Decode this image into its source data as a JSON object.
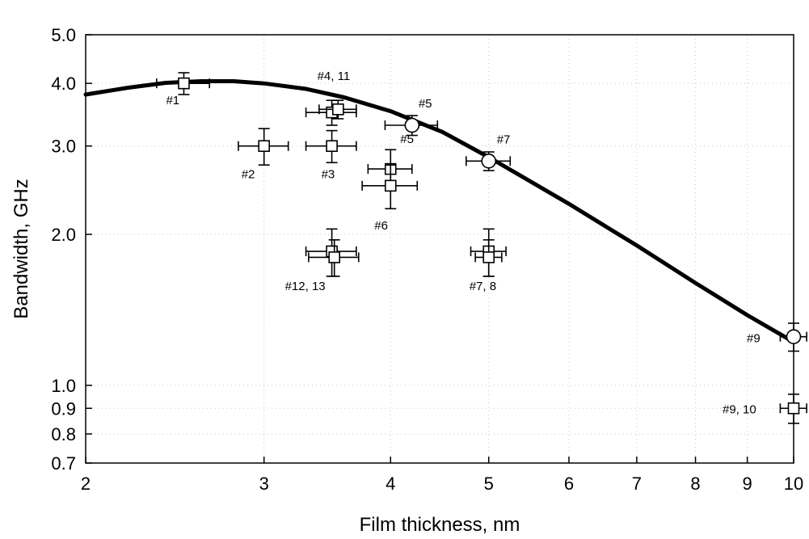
{
  "chart_data": {
    "type": "scatter",
    "xlabel": "Film thickness, nm",
    "ylabel": "Bandwidth, GHz",
    "x_scale": "log",
    "y_scale": "log",
    "xlim": [
      2,
      10
    ],
    "ylim": [
      0.7,
      5.0
    ],
    "x_ticks": [
      {
        "value": 2,
        "label": "2"
      },
      {
        "value": 3,
        "label": "3"
      },
      {
        "value": 4,
        "label": "4"
      },
      {
        "value": 5,
        "label": "5"
      },
      {
        "value": 6,
        "label": "6"
      },
      {
        "value": 7,
        "label": "7"
      },
      {
        "value": 8,
        "label": "8"
      },
      {
        "value": 9,
        "label": "9"
      },
      {
        "value": 10,
        "label": "10"
      }
    ],
    "y_ticks": [
      {
        "value": 0.7,
        "label": "0.7"
      },
      {
        "value": 0.8,
        "label": "0.8"
      },
      {
        "value": 0.9,
        "label": "0.9"
      },
      {
        "value": 1.0,
        "label": "1.0"
      },
      {
        "value": 2.0,
        "label": "2.0"
      },
      {
        "value": 3.0,
        "label": "3.0"
      },
      {
        "value": 4.0,
        "label": "4.0"
      },
      {
        "value": 5.0,
        "label": "5.0"
      }
    ],
    "grid": true,
    "series": [
      {
        "marker": "square",
        "points": [
          {
            "x": 2.5,
            "y": 4.0,
            "xerr": 0.15,
            "yerr": 0.2,
            "label": "#1"
          },
          {
            "x": 3.0,
            "y": 3.0,
            "xerr": 0.17,
            "yerr": 0.25,
            "label": "#2"
          },
          {
            "x": 3.5,
            "y": 3.0,
            "xerr": 0.2,
            "yerr": 0.22,
            "label": "#3"
          },
          {
            "x": 3.5,
            "y": 3.5,
            "xerr": 0.2,
            "yerr": 0.2,
            "label": "#4, 11"
          },
          {
            "x": 3.55,
            "y": 3.55,
            "xerr": 0.15,
            "yerr": 0.15,
            "label": ""
          },
          {
            "x": 4.0,
            "y": 2.7,
            "xerr": 0.2,
            "yerr": 0.25,
            "label": "#5"
          },
          {
            "x": 4.0,
            "y": 2.5,
            "xerr": 0.25,
            "yerr": 0.25,
            "label": "#6"
          },
          {
            "x": 3.5,
            "y": 1.85,
            "xerr": 0.2,
            "yerr": 0.2,
            "label": "#12, 13"
          },
          {
            "x": 3.52,
            "y": 1.8,
            "xerr": 0.2,
            "yerr": 0.15,
            "label": ""
          },
          {
            "x": 5.0,
            "y": 1.85,
            "xerr": 0.2,
            "yerr": 0.2,
            "label": "#7, 8"
          },
          {
            "x": 5.0,
            "y": 1.8,
            "xerr": 0.15,
            "yerr": 0.15,
            "label": ""
          },
          {
            "x": 10.0,
            "y": 0.9,
            "xerr": 0.3,
            "yerr": 0.06,
            "label": "#9, 10"
          }
        ]
      },
      {
        "marker": "circle",
        "points": [
          {
            "x": 4.2,
            "y": 3.3,
            "xerr": 0.25,
            "yerr": 0.15,
            "label": "#5"
          },
          {
            "x": 5.0,
            "y": 2.8,
            "xerr": 0.25,
            "yerr": 0.12,
            "label": "#7"
          },
          {
            "x": 10.0,
            "y": 1.25,
            "xerr": 0.3,
            "yerr": 0.08,
            "label": "#9"
          }
        ]
      },
      {
        "marker": "line",
        "points": [
          {
            "x": 2.0,
            "y": 3.8
          },
          {
            "x": 2.2,
            "y": 3.92
          },
          {
            "x": 2.4,
            "y": 4.01
          },
          {
            "x": 2.6,
            "y": 4.04
          },
          {
            "x": 2.8,
            "y": 4.04
          },
          {
            "x": 3.0,
            "y": 4.0
          },
          {
            "x": 3.3,
            "y": 3.9
          },
          {
            "x": 3.6,
            "y": 3.75
          },
          {
            "x": 4.0,
            "y": 3.52
          },
          {
            "x": 4.5,
            "y": 3.2
          },
          {
            "x": 5.0,
            "y": 2.85
          },
          {
            "x": 6.0,
            "y": 2.3
          },
          {
            "x": 7.0,
            "y": 1.9
          },
          {
            "x": 8.0,
            "y": 1.6
          },
          {
            "x": 9.0,
            "y": 1.38
          },
          {
            "x": 10.0,
            "y": 1.22
          }
        ]
      }
    ]
  }
}
